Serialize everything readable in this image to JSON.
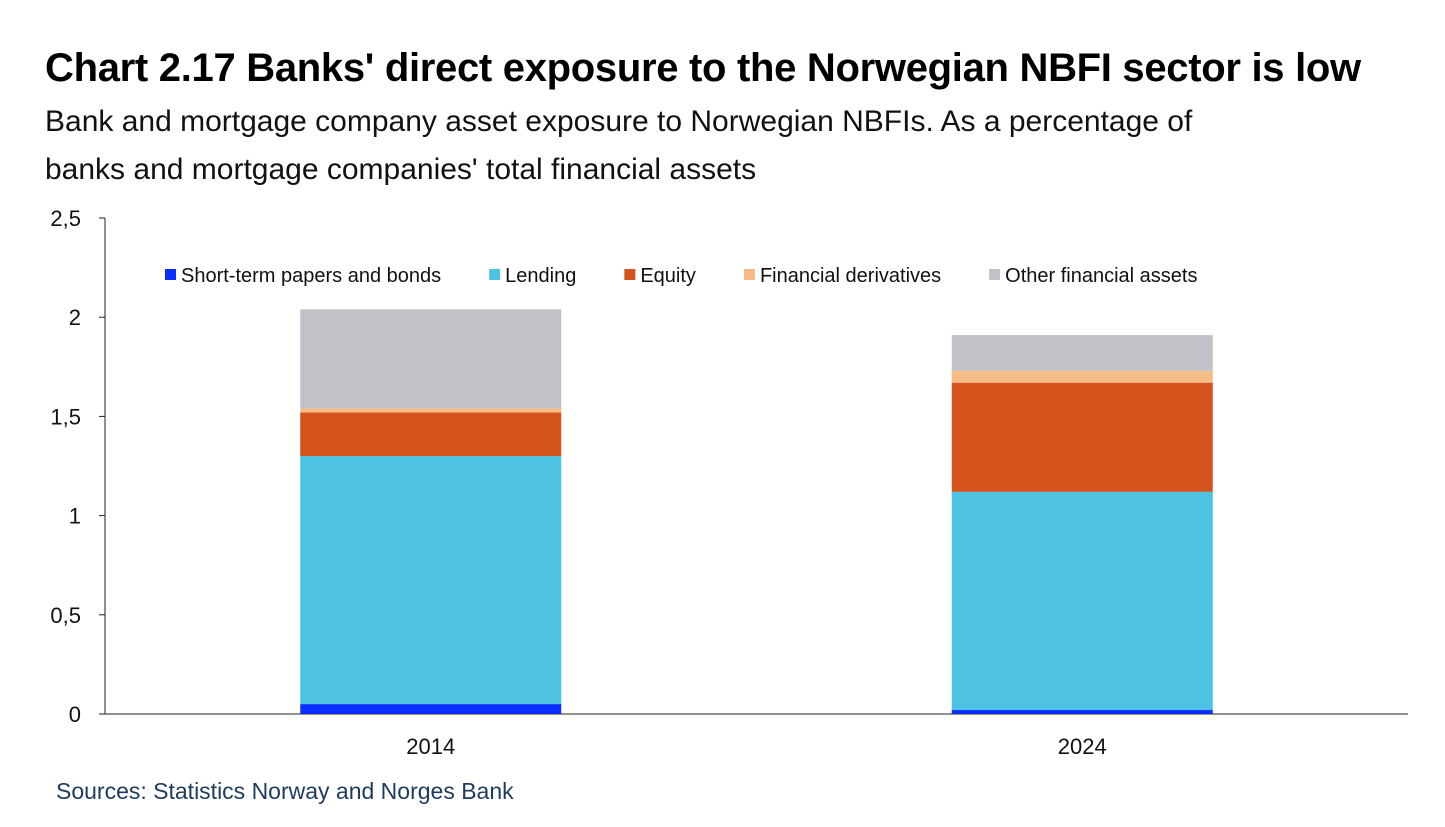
{
  "header": {
    "title": "Chart 2.17 Banks' direct exposure to the Norwegian NBFI sector is low",
    "subtitle": "Bank and mortgage company asset exposure to Norwegian NBFIs. As a percentage of banks and mortgage companies' total financial assets"
  },
  "footer": {
    "source": "Sources: Statistics Norway and Norges Bank"
  },
  "chart_data": {
    "type": "bar",
    "stacked": true,
    "categories": [
      "2014",
      "2024"
    ],
    "series": [
      {
        "name": "Short-term papers and bonds",
        "color": "#0a2eff",
        "values": [
          0.05,
          0.02
        ]
      },
      {
        "name": "Lending",
        "color": "#4dc2e2",
        "values": [
          1.25,
          1.1
        ]
      },
      {
        "name": "Equity",
        "color": "#d4521b",
        "values": [
          0.22,
          0.55
        ]
      },
      {
        "name": "Financial derivatives",
        "color": "#f7bc85",
        "values": [
          0.02,
          0.06
        ]
      },
      {
        "name": "Other financial assets",
        "color": "#c0c2c8",
        "values": [
          0.5,
          0.18
        ]
      }
    ],
    "ylim": [
      0,
      2.5
    ],
    "yticks": [
      0,
      0.5,
      1,
      1.5,
      2,
      2.5
    ],
    "ytick_labels": [
      "0",
      "0,5",
      "1",
      "1,5",
      "2",
      "2,5"
    ],
    "grid": false,
    "legend_position": "top"
  }
}
